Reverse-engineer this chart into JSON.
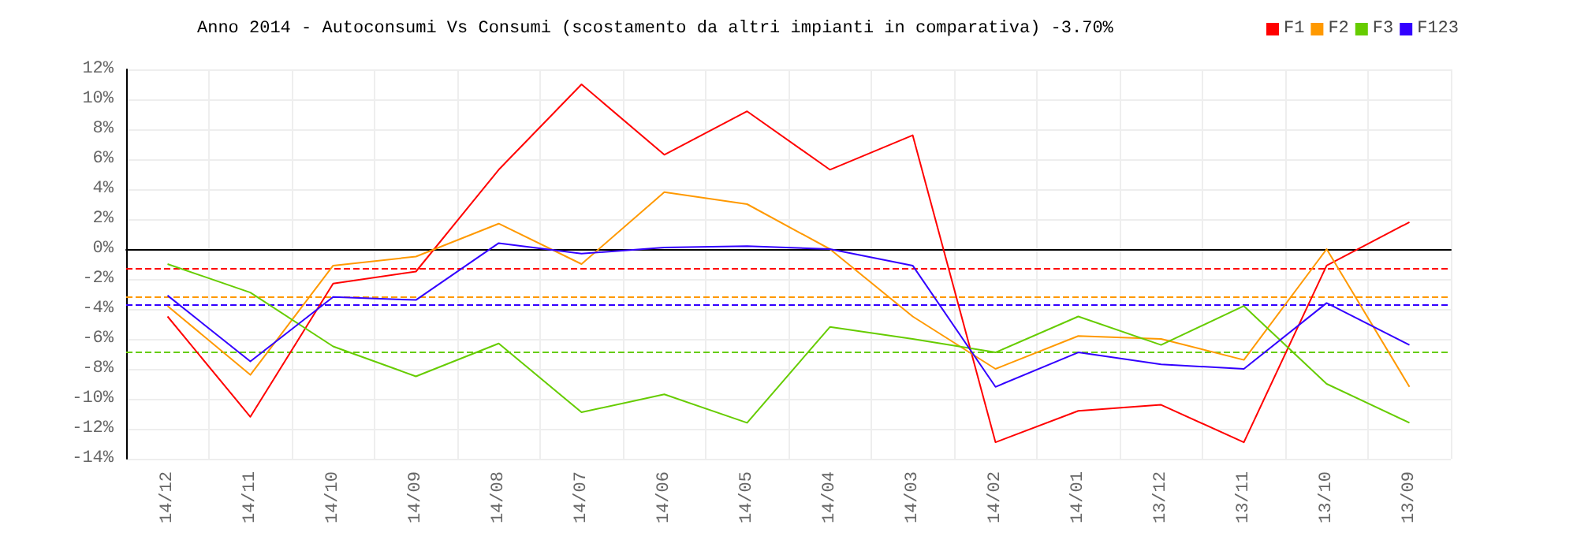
{
  "chart_data": {
    "type": "line",
    "title": "Anno 2014 - Autoconsumi Vs Consumi (scostamento da altri impianti in comparativa) -3.70%",
    "categories": [
      "14/12",
      "14/11",
      "14/10",
      "14/09",
      "14/08",
      "14/07",
      "14/06",
      "14/05",
      "14/04",
      "14/03",
      "14/02",
      "14/01",
      "13/12",
      "13/11",
      "13/10",
      "13/09"
    ],
    "series": [
      {
        "name": "F1",
        "color": "#ff0000",
        "values": [
          -4.5,
          -11.2,
          -2.3,
          -1.5,
          5.3,
          11.0,
          6.3,
          9.2,
          5.3,
          7.6,
          -12.9,
          -10.8,
          -10.4,
          -12.9,
          -1.1,
          1.8
        ]
      },
      {
        "name": "F2",
        "color": "#ff9900",
        "values": [
          -3.8,
          -8.4,
          -1.1,
          -0.5,
          1.7,
          -1.0,
          3.8,
          3.0,
          0,
          -4.5,
          -8.0,
          -5.8,
          -6.0,
          -7.4,
          0,
          -9.2
        ]
      },
      {
        "name": "F3",
        "color": "#66cc00",
        "values": [
          -1.0,
          -2.9,
          -6.5,
          -8.5,
          -6.3,
          -10.9,
          -9.7,
          -11.6,
          -5.2,
          -6.0,
          -6.9,
          -4.5,
          -6.4,
          -3.8,
          -9.0,
          -11.6
        ]
      },
      {
        "name": "F123",
        "color": "#3300ff",
        "values": [
          -3.1,
          -7.5,
          -3.2,
          -3.4,
          0.4,
          -0.3,
          0.1,
          0.2,
          0,
          -1.1,
          -9.2,
          -6.9,
          -7.7,
          -8.0,
          -3.6,
          -6.4
        ]
      }
    ],
    "ylim": [
      -14,
      12
    ],
    "yticks": [
      {
        "value": -14,
        "label": "-14%"
      },
      {
        "value": -12,
        "label": "-12%"
      },
      {
        "value": -10,
        "label": "-10%"
      },
      {
        "value": -8,
        "label": "-8%"
      },
      {
        "value": -6,
        "label": "-6%"
      },
      {
        "value": -4,
        "label": "-4%"
      },
      {
        "value": -2,
        "label": "-2%"
      },
      {
        "value": 0,
        "label": "0%"
      },
      {
        "value": 2,
        "label": "2%"
      },
      {
        "value": 4,
        "label": "4%"
      },
      {
        "value": 6,
        "label": "6%"
      },
      {
        "value": 8,
        "label": "8%"
      },
      {
        "value": 10,
        "label": "10%"
      },
      {
        "value": 12,
        "label": "12%"
      }
    ],
    "ref_lines": [
      {
        "axis": "y",
        "value": 0,
        "color": "#000000",
        "line_style": "solid"
      },
      {
        "axis": "y",
        "value": -1.3,
        "color": "#ff0000",
        "line_style": "dashed"
      },
      {
        "axis": "y",
        "value": -3.2,
        "color": "#ff9900",
        "line_style": "dashed"
      },
      {
        "axis": "y",
        "value": -3.7,
        "color": "#3300ff",
        "line_style": "dashed"
      },
      {
        "axis": "y",
        "value": -6.9,
        "color": "#66cc00",
        "line_style": "dashed"
      }
    ],
    "grid": true,
    "legend": "top right",
    "marker": "none",
    "line_style": "solid"
  }
}
